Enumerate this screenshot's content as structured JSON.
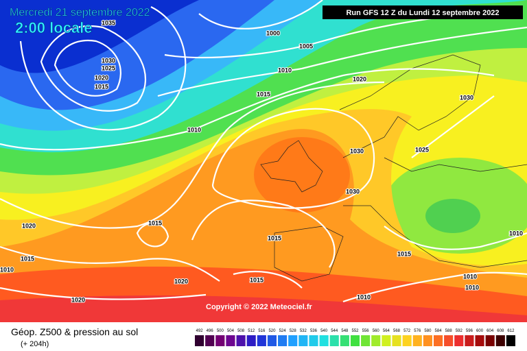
{
  "header": {
    "date": "Mercredi 21 septembre 2022",
    "time": "2:00 locale",
    "run": "Run GFS 12 Z du Lundi 12 septembre 2022"
  },
  "copyright": "Copyright © 2022 Meteociel.fr",
  "footer": {
    "title": "Géop. Z500 & pression au sol",
    "lead": "(+ 204h)"
  },
  "legend": {
    "values": [
      492,
      496,
      500,
      504,
      508,
      512,
      516,
      520,
      524,
      528,
      532,
      536,
      540,
      544,
      548,
      552,
      556,
      560,
      564,
      568,
      572,
      576,
      580,
      584,
      588,
      592,
      596,
      600,
      604,
      608,
      612
    ]
  },
  "isobar_labels": [
    "1035",
    "1030",
    "1025",
    "1020",
    "1015",
    "1000",
    "1005",
    "1010",
    "1015",
    "1020",
    "1030",
    "1010",
    "1030",
    "1025",
    "1030",
    "1020",
    "1015",
    "1015",
    "1015",
    "1010",
    "1015",
    "1010",
    "1020",
    "1015",
    "1010",
    "1010",
    "1020",
    "1010"
  ]
}
